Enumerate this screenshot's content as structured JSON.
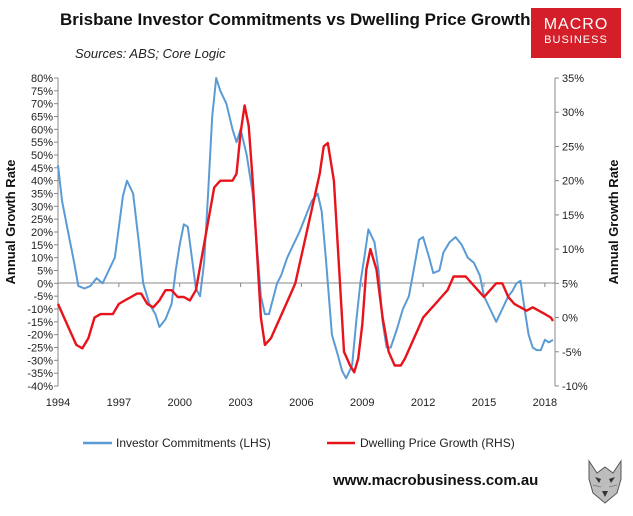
{
  "header": {
    "title": "Brisbane Investor Commitments vs Dwelling Price Growth",
    "subtitle": "Sources: ABS; Core Logic",
    "logo_line1": "MACRO",
    "logo_line2": "BUSINESS"
  },
  "footer": {
    "url": "www.macrobusiness.com.au"
  },
  "colors": {
    "lhs": "#5b9bd5",
    "rhs": "#e8141c",
    "logo_bg": "#d41f2a"
  },
  "chart_data": {
    "type": "line",
    "title": "Brisbane Investor Commitments vs Dwelling Price Growth",
    "ylabel_left": "Annual Growth Rate",
    "ylabel_right": "Annual Growth Rate",
    "ylim_left": [
      -40,
      80
    ],
    "ylim_right": [
      -10,
      35
    ],
    "xlim": [
      1994,
      2018.5
    ],
    "x_ticks": [
      "1994",
      "1997",
      "2000",
      "2003",
      "2006",
      "2009",
      "2012",
      "2015",
      "2018"
    ],
    "y_ticks_left": [
      "80%",
      "75%",
      "70%",
      "65%",
      "60%",
      "55%",
      "50%",
      "45%",
      "40%",
      "35%",
      "30%",
      "25%",
      "20%",
      "15%",
      "10%",
      "5%",
      "0%",
      "-5%",
      "-10%",
      "-15%",
      "-20%",
      "-25%",
      "-30%",
      "-35%",
      "-40%"
    ],
    "y_ticks_right": [
      "35%",
      "30%",
      "25%",
      "20%",
      "15%",
      "10%",
      "5%",
      "0%",
      "-5%",
      "-10%"
    ],
    "grid": false,
    "legend_position": "bottom",
    "series": [
      {
        "name": "Investor Commitments (LHS)",
        "axis": "left",
        "x": [
          1994.0,
          1994.2,
          1994.5,
          1994.8,
          1995.0,
          1995.3,
          1995.6,
          1995.9,
          1996.2,
          1996.5,
          1996.8,
          1997.0,
          1997.2,
          1997.4,
          1997.7,
          1998.0,
          1998.2,
          1998.5,
          1998.8,
          1999.0,
          1999.3,
          1999.6,
          1999.8,
          2000.0,
          2000.2,
          2000.4,
          2000.6,
          2000.8,
          2001.0,
          2001.2,
          2001.4,
          2001.6,
          2001.8,
          2002.0,
          2002.3,
          2002.6,
          2002.8,
          2003.0,
          2003.3,
          2003.6,
          2003.8,
          2004.0,
          2004.2,
          2004.4,
          2004.6,
          2004.8,
          2005.0,
          2005.3,
          2005.6,
          2005.9,
          2006.2,
          2006.5,
          2006.8,
          2007.0,
          2007.2,
          2007.5,
          2007.8,
          2008.0,
          2008.2,
          2008.5,
          2008.7,
          2008.9,
          2009.1,
          2009.3,
          2009.6,
          2009.8,
          2010.0,
          2010.2,
          2010.4,
          2010.7,
          2011.0,
          2011.3,
          2011.6,
          2011.8,
          2012.0,
          2012.3,
          2012.5,
          2012.8,
          2013.0,
          2013.3,
          2013.6,
          2013.9,
          2014.2,
          2014.5,
          2014.8,
          2015.0,
          2015.3,
          2015.6,
          2015.9,
          2016.2,
          2016.4,
          2016.6,
          2016.8,
          2017.0,
          2017.2,
          2017.4,
          2017.6,
          2017.8,
          2018.0,
          2018.2,
          2018.4
        ],
        "values": [
          46,
          32,
          20,
          8,
          -1,
          -2,
          -1,
          2,
          0,
          5,
          10,
          22,
          34,
          40,
          35,
          15,
          0,
          -8,
          -12,
          -17,
          -14,
          -8,
          5,
          15,
          23,
          22,
          10,
          -2,
          -5,
          8,
          35,
          65,
          80,
          75,
          70,
          60,
          55,
          60,
          50,
          35,
          15,
          -5,
          -12,
          -12,
          -6,
          0,
          3,
          10,
          15,
          20,
          26,
          32,
          35,
          28,
          10,
          -20,
          -28,
          -34,
          -37,
          -32,
          -15,
          0,
          10,
          21,
          16,
          5,
          -15,
          -25,
          -25,
          -18,
          -10,
          -5,
          8,
          17,
          18,
          10,
          4,
          5,
          12,
          16,
          18,
          15,
          10,
          8,
          3,
          -5,
          -10,
          -15,
          -10,
          -5,
          -3,
          0,
          1,
          -10,
          -20,
          -25,
          -26,
          -26,
          -22,
          -23,
          -22
        ]
      },
      {
        "name": "Dwelling Price Growth (RHS)",
        "axis": "right",
        "x": [
          1994.0,
          1994.3,
          1994.6,
          1994.9,
          1995.2,
          1995.5,
          1995.8,
          1996.1,
          1996.4,
          1996.7,
          1997.0,
          1997.3,
          1997.6,
          1997.9,
          1998.1,
          1998.4,
          1998.7,
          1999.0,
          1999.3,
          1999.6,
          1999.9,
          2000.2,
          2000.5,
          2000.8,
          2001.1,
          2001.4,
          2001.7,
          2002.0,
          2002.3,
          2002.6,
          2002.8,
          2003.0,
          2003.2,
          2003.4,
          2003.6,
          2003.8,
          2004.0,
          2004.2,
          2004.5,
          2004.8,
          2005.1,
          2005.4,
          2005.7,
          2006.0,
          2006.3,
          2006.6,
          2006.9,
          2007.1,
          2007.3,
          2007.6,
          2007.9,
          2008.1,
          2008.4,
          2008.6,
          2008.8,
          2009.0,
          2009.2,
          2009.4,
          2009.7,
          2010.0,
          2010.3,
          2010.6,
          2010.9,
          2011.1,
          2011.4,
          2011.7,
          2012.0,
          2012.3,
          2012.6,
          2012.9,
          2013.2,
          2013.5,
          2013.8,
          2014.1,
          2014.4,
          2014.7,
          2015.0,
          2015.3,
          2015.6,
          2015.9,
          2016.2,
          2016.5,
          2016.8,
          2017.1,
          2017.4,
          2017.7,
          2018.0,
          2018.3,
          2018.4
        ],
        "values": [
          2,
          0,
          -2,
          -4,
          -4.5,
          -3,
          0,
          0.5,
          0.5,
          0.5,
          2,
          2.5,
          3,
          3.5,
          3.5,
          2,
          1.5,
          2.5,
          4,
          4,
          3,
          3,
          2.5,
          4,
          9,
          14,
          19,
          20,
          20,
          20,
          21,
          27,
          31,
          28,
          20,
          10,
          0,
          -4,
          -3,
          -1,
          1,
          3,
          5,
          9,
          13,
          17,
          21,
          25,
          25.5,
          20,
          5,
          -5,
          -7,
          -8,
          -6,
          -1,
          7,
          10,
          7,
          0,
          -5,
          -7,
          -7,
          -6,
          -4,
          -2,
          0,
          1,
          2,
          3,
          4,
          6,
          6,
          6,
          5,
          4,
          3,
          4,
          5,
          5,
          3,
          2,
          1.5,
          1,
          1.5,
          1,
          0.5,
          0,
          -0.5
        ]
      }
    ]
  }
}
